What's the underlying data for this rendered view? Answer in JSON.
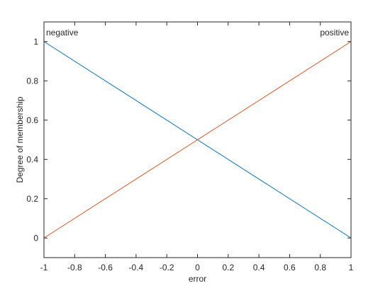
{
  "chart_data": {
    "type": "line",
    "xlabel": "error",
    "ylabel": "Degree of membership",
    "xlim": [
      -1,
      1
    ],
    "ylim": [
      -0.1,
      1.1
    ],
    "xticks": [
      -1,
      -0.8,
      -0.6,
      -0.4,
      -0.2,
      0,
      0.2,
      0.4,
      0.6,
      0.8,
      1
    ],
    "xtick_labels": [
      "-1",
      "-0.8",
      "-0.6",
      "-0.4",
      "-0.2",
      "0",
      "0.2",
      "0.4",
      "0.6",
      "0.8",
      "1"
    ],
    "yticks": [
      0,
      0.2,
      0.4,
      0.6,
      0.8,
      1
    ],
    "ytick_labels": [
      "0",
      "0.2",
      "0.4",
      "0.6",
      "0.8",
      "1"
    ],
    "grid": false,
    "series": [
      {
        "name": "negative",
        "color": "#0072BD",
        "x": [
          -1,
          1
        ],
        "y": [
          1,
          0
        ]
      },
      {
        "name": "positive",
        "color": "#D95319",
        "x": [
          -1,
          1
        ],
        "y": [
          0,
          1
        ]
      }
    ],
    "annotations": [
      {
        "text": "negative",
        "x": -1,
        "y": 1,
        "anchor": "start"
      },
      {
        "text": "positive",
        "x": 1,
        "y": 1,
        "anchor": "end"
      }
    ]
  }
}
